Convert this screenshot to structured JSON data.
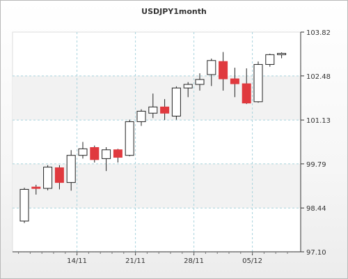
{
  "chart_data": {
    "type": "candlestick",
    "title": "USDJPY1month",
    "xlabel": "",
    "ylabel": "",
    "ylim": [
      97.1,
      103.82
    ],
    "yticks": [
      "103.82",
      "102.48",
      "101.13",
      "99.79",
      "98.44",
      "97.10"
    ],
    "xticks": [
      {
        "label": "14/11",
        "index": 4
      },
      {
        "label": "21/11",
        "index": 9
      },
      {
        "label": "28/11",
        "index": 14
      },
      {
        "label": "05/12",
        "index": 19
      }
    ],
    "grid": true,
    "colors": {
      "up": "#ffffff",
      "down": "#e0393e",
      "grid": "#a7d3dc",
      "axis": "#333333"
    },
    "candles": [
      {
        "open": 98.04,
        "high": 99.06,
        "low": 97.98,
        "close": 99.01
      },
      {
        "open": 99.08,
        "high": 99.15,
        "low": 98.85,
        "close": 99.05
      },
      {
        "open": 99.04,
        "high": 99.75,
        "low": 98.98,
        "close": 99.69
      },
      {
        "open": 99.67,
        "high": 99.75,
        "low": 99.01,
        "close": 99.22
      },
      {
        "open": 99.22,
        "high": 100.21,
        "low": 98.97,
        "close": 100.05
      },
      {
        "open": 100.05,
        "high": 100.46,
        "low": 99.95,
        "close": 100.25
      },
      {
        "open": 100.29,
        "high": 100.35,
        "low": 99.83,
        "close": 99.92
      },
      {
        "open": 99.95,
        "high": 100.3,
        "low": 99.57,
        "close": 100.22
      },
      {
        "open": 100.22,
        "high": 100.25,
        "low": 99.83,
        "close": 99.99
      },
      {
        "open": 100.05,
        "high": 101.14,
        "low": 100.02,
        "close": 101.08
      },
      {
        "open": 101.08,
        "high": 101.46,
        "low": 100.95,
        "close": 101.4
      },
      {
        "open": 101.34,
        "high": 101.94,
        "low": 101.19,
        "close": 101.53
      },
      {
        "open": 101.53,
        "high": 101.77,
        "low": 101.13,
        "close": 101.34
      },
      {
        "open": 101.25,
        "high": 102.16,
        "low": 101.14,
        "close": 102.11
      },
      {
        "open": 102.11,
        "high": 102.29,
        "low": 101.83,
        "close": 102.22
      },
      {
        "open": 102.22,
        "high": 102.56,
        "low": 102.03,
        "close": 102.37
      },
      {
        "open": 102.52,
        "high": 103.01,
        "low": 102.17,
        "close": 102.95
      },
      {
        "open": 102.92,
        "high": 103.21,
        "low": 102.03,
        "close": 102.39
      },
      {
        "open": 102.39,
        "high": 102.73,
        "low": 101.83,
        "close": 102.24
      },
      {
        "open": 102.24,
        "high": 102.71,
        "low": 101.62,
        "close": 101.65
      },
      {
        "open": 101.69,
        "high": 102.92,
        "low": 101.66,
        "close": 102.83
      },
      {
        "open": 102.83,
        "high": 103.16,
        "low": 102.76,
        "close": 103.13
      },
      {
        "open": 103.14,
        "high": 103.2,
        "low": 103.02,
        "close": 103.17
      }
    ]
  }
}
